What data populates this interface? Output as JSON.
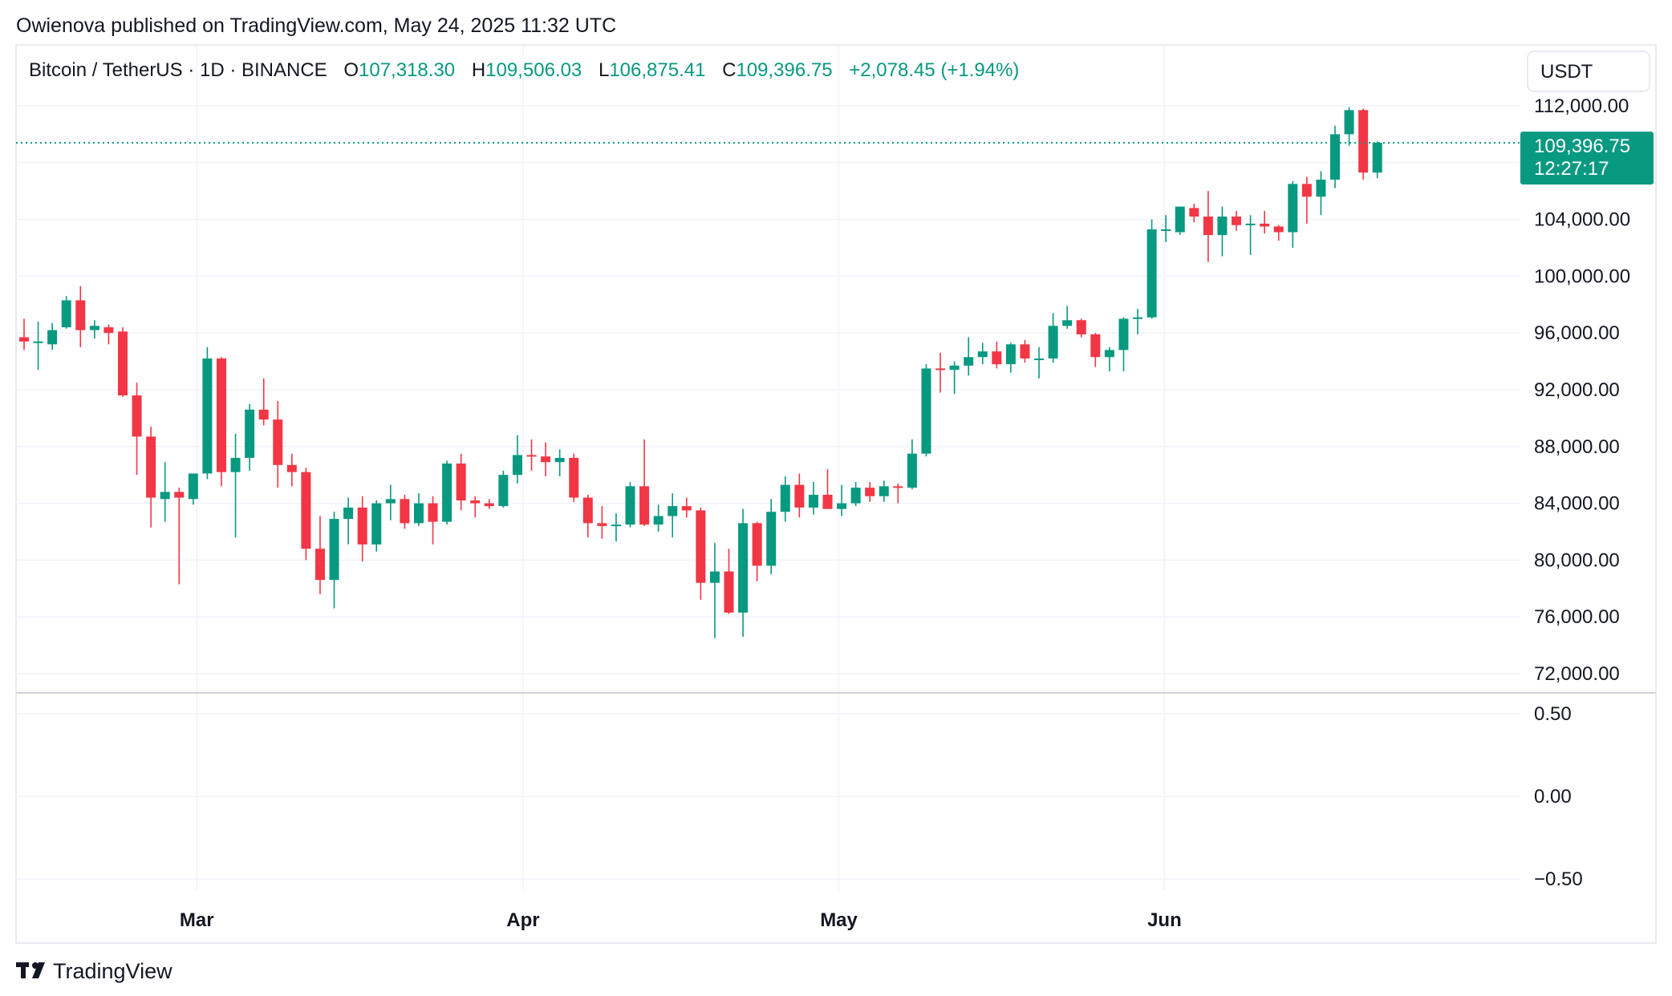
{
  "header": {
    "publisher_line": "Owienova published on TradingView.com, May 24, 2025 11:32 UTC"
  },
  "legend": {
    "symbol": "Bitcoin / TetherUS · 1D · BINANCE",
    "o_label": "O",
    "o_value": "107,318.30",
    "h_label": "H",
    "h_value": "109,506.03",
    "l_label": "L",
    "l_value": "106,875.41",
    "c_label": "C",
    "c_value": "109,396.75",
    "change": "+2,078.45 (+1.94%)"
  },
  "price_axis": {
    "currency": "USDT",
    "ticks": [
      "112,000.00",
      "104,000.00",
      "100,000.00",
      "96,000.00",
      "92,000.00",
      "88,000.00",
      "84,000.00",
      "80,000.00",
      "76,000.00",
      "72,000.00"
    ],
    "last_price_label": "109,396.75",
    "countdown_label": "12:27:17"
  },
  "indicator_axis": {
    "ticks": [
      "0.50",
      "0.00",
      "−0.50"
    ]
  },
  "time_axis": {
    "labels": [
      "Mar",
      "Apr",
      "May",
      "Jun"
    ]
  },
  "footer": {
    "brand": "TradingView"
  },
  "colors": {
    "up": "#089981",
    "down": "#f23645",
    "grid": "#f0f3fa",
    "text": "#131722"
  },
  "chart_data": {
    "type": "candlestick",
    "symbol": "BTCUSDT",
    "interval": "1D",
    "ylim": [
      71000,
      113500
    ],
    "indicator_ylim": [
      -0.6,
      0.6
    ],
    "grid": true,
    "last_price": 109396.75,
    "candles": [
      {
        "o": 95700,
        "h": 97000,
        "l": 94800,
        "c": 95400
      },
      {
        "o": 95400,
        "h": 96800,
        "l": 93400,
        "c": 95400
      },
      {
        "o": 95200,
        "h": 96700,
        "l": 94800,
        "c": 96200
      },
      {
        "o": 96400,
        "h": 98600,
        "l": 96300,
        "c": 98300
      },
      {
        "o": 98300,
        "h": 99300,
        "l": 95000,
        "c": 96200
      },
      {
        "o": 96200,
        "h": 96900,
        "l": 95600,
        "c": 96500
      },
      {
        "o": 96400,
        "h": 96600,
        "l": 95200,
        "c": 96000
      },
      {
        "o": 96100,
        "h": 96400,
        "l": 91500,
        "c": 91600
      },
      {
        "o": 91600,
        "h": 92500,
        "l": 86000,
        "c": 88700
      },
      {
        "o": 88700,
        "h": 89400,
        "l": 82300,
        "c": 84400
      },
      {
        "o": 84300,
        "h": 86900,
        "l": 82700,
        "c": 84800
      },
      {
        "o": 84800,
        "h": 85100,
        "l": 78300,
        "c": 84400
      },
      {
        "o": 84300,
        "h": 86000,
        "l": 83900,
        "c": 86100
      },
      {
        "o": 86100,
        "h": 95000,
        "l": 85700,
        "c": 94200
      },
      {
        "o": 94200,
        "h": 94300,
        "l": 85200,
        "c": 86200
      },
      {
        "o": 86200,
        "h": 88900,
        "l": 81600,
        "c": 87200
      },
      {
        "o": 87200,
        "h": 91000,
        "l": 86300,
        "c": 90600
      },
      {
        "o": 90600,
        "h": 92800,
        "l": 89500,
        "c": 89900
      },
      {
        "o": 89900,
        "h": 91200,
        "l": 85100,
        "c": 86700
      },
      {
        "o": 86700,
        "h": 87500,
        "l": 85200,
        "c": 86200
      },
      {
        "o": 86200,
        "h": 86500,
        "l": 80000,
        "c": 80800
      },
      {
        "o": 80800,
        "h": 83100,
        "l": 77600,
        "c": 78600
      },
      {
        "o": 78600,
        "h": 83400,
        "l": 76600,
        "c": 82900
      },
      {
        "o": 82900,
        "h": 84400,
        "l": 81100,
        "c": 83700
      },
      {
        "o": 83700,
        "h": 84500,
        "l": 79900,
        "c": 81100
      },
      {
        "o": 81100,
        "h": 84200,
        "l": 80600,
        "c": 84000
      },
      {
        "o": 84000,
        "h": 85300,
        "l": 82800,
        "c": 84300
      },
      {
        "o": 84300,
        "h": 84600,
        "l": 82200,
        "c": 82600
      },
      {
        "o": 82600,
        "h": 84700,
        "l": 82400,
        "c": 84000
      },
      {
        "o": 84000,
        "h": 84500,
        "l": 81100,
        "c": 82700
      },
      {
        "o": 82700,
        "h": 87000,
        "l": 82500,
        "c": 86800
      },
      {
        "o": 86800,
        "h": 87500,
        "l": 83500,
        "c": 84200
      },
      {
        "o": 84200,
        "h": 84500,
        "l": 83000,
        "c": 84000
      },
      {
        "o": 84000,
        "h": 84300,
        "l": 83600,
        "c": 83800
      },
      {
        "o": 83800,
        "h": 86300,
        "l": 83700,
        "c": 86000
      },
      {
        "o": 86000,
        "h": 88800,
        "l": 85400,
        "c": 87400
      },
      {
        "o": 87400,
        "h": 88500,
        "l": 86300,
        "c": 87300
      },
      {
        "o": 87300,
        "h": 88300,
        "l": 85900,
        "c": 86900
      },
      {
        "o": 86900,
        "h": 87800,
        "l": 85900,
        "c": 87200
      },
      {
        "o": 87200,
        "h": 87500,
        "l": 84100,
        "c": 84400
      },
      {
        "o": 84400,
        "h": 84600,
        "l": 81600,
        "c": 82600
      },
      {
        "o": 82600,
        "h": 83800,
        "l": 81500,
        "c": 82400
      },
      {
        "o": 82400,
        "h": 83300,
        "l": 81300,
        "c": 82500
      },
      {
        "o": 82500,
        "h": 85500,
        "l": 82300,
        "c": 85200
      },
      {
        "o": 85200,
        "h": 88500,
        "l": 82400,
        "c": 82500
      },
      {
        "o": 82500,
        "h": 83900,
        "l": 82000,
        "c": 83100
      },
      {
        "o": 83100,
        "h": 84700,
        "l": 81600,
        "c": 83800
      },
      {
        "o": 83800,
        "h": 84400,
        "l": 83000,
        "c": 83500
      },
      {
        "o": 83500,
        "h": 83700,
        "l": 77200,
        "c": 78400
      },
      {
        "o": 78400,
        "h": 81200,
        "l": 74500,
        "c": 79200
      },
      {
        "o": 79200,
        "h": 80800,
        "l": 76200,
        "c": 76300
      },
      {
        "o": 76300,
        "h": 83600,
        "l": 74600,
        "c": 82600
      },
      {
        "o": 82600,
        "h": 82700,
        "l": 78500,
        "c": 79600
      },
      {
        "o": 79600,
        "h": 84300,
        "l": 79000,
        "c": 83400
      },
      {
        "o": 83400,
        "h": 85900,
        "l": 82700,
        "c": 85300
      },
      {
        "o": 85300,
        "h": 86100,
        "l": 83000,
        "c": 83700
      },
      {
        "o": 83700,
        "h": 85500,
        "l": 83200,
        "c": 84600
      },
      {
        "o": 84600,
        "h": 86400,
        "l": 83600,
        "c": 83600
      },
      {
        "o": 83600,
        "h": 85300,
        "l": 83100,
        "c": 84000
      },
      {
        "o": 84000,
        "h": 85500,
        "l": 83800,
        "c": 85100
      },
      {
        "o": 85100,
        "h": 85500,
        "l": 84100,
        "c": 84500
      },
      {
        "o": 84500,
        "h": 85600,
        "l": 84100,
        "c": 85200
      },
      {
        "o": 85200,
        "h": 85400,
        "l": 84000,
        "c": 85100
      },
      {
        "o": 85100,
        "h": 88500,
        "l": 85000,
        "c": 87500
      },
      {
        "o": 87500,
        "h": 93800,
        "l": 87300,
        "c": 93500
      },
      {
        "o": 93500,
        "h": 94600,
        "l": 91800,
        "c": 93400
      },
      {
        "o": 93400,
        "h": 94000,
        "l": 91700,
        "c": 93700
      },
      {
        "o": 93700,
        "h": 95700,
        "l": 93000,
        "c": 94300
      },
      {
        "o": 94300,
        "h": 95300,
        "l": 93800,
        "c": 94700
      },
      {
        "o": 94700,
        "h": 95400,
        "l": 93500,
        "c": 93800
      },
      {
        "o": 93800,
        "h": 95300,
        "l": 93200,
        "c": 95200
      },
      {
        "o": 95200,
        "h": 95500,
        "l": 93900,
        "c": 94200
      },
      {
        "o": 94200,
        "h": 95000,
        "l": 92800,
        "c": 94200
      },
      {
        "o": 94200,
        "h": 97400,
        "l": 93900,
        "c": 96500
      },
      {
        "o": 96500,
        "h": 97900,
        "l": 96300,
        "c": 96900
      },
      {
        "o": 96900,
        "h": 97000,
        "l": 95700,
        "c": 95900
      },
      {
        "o": 95900,
        "h": 96000,
        "l": 93600,
        "c": 94300
      },
      {
        "o": 94300,
        "h": 95000,
        "l": 93300,
        "c": 94800
      },
      {
        "o": 94800,
        "h": 97100,
        "l": 93300,
        "c": 97000
      },
      {
        "o": 97000,
        "h": 97700,
        "l": 95900,
        "c": 97100
      },
      {
        "o": 97100,
        "h": 104000,
        "l": 97000,
        "c": 103300
      },
      {
        "o": 103300,
        "h": 104300,
        "l": 102400,
        "c": 103300
      },
      {
        "o": 103100,
        "h": 104900,
        "l": 102900,
        "c": 104900
      },
      {
        "o": 104800,
        "h": 105100,
        "l": 103800,
        "c": 104200
      },
      {
        "o": 104200,
        "h": 106000,
        "l": 101000,
        "c": 102900
      },
      {
        "o": 102900,
        "h": 104900,
        "l": 101400,
        "c": 104200
      },
      {
        "o": 104200,
        "h": 104600,
        "l": 103200,
        "c": 103600
      },
      {
        "o": 103600,
        "h": 104300,
        "l": 101500,
        "c": 103700
      },
      {
        "o": 103700,
        "h": 104600,
        "l": 103000,
        "c": 103500
      },
      {
        "o": 103500,
        "h": 103600,
        "l": 102500,
        "c": 103100
      },
      {
        "o": 103100,
        "h": 106700,
        "l": 102000,
        "c": 106500
      },
      {
        "o": 106500,
        "h": 107000,
        "l": 103700,
        "c": 105600
      },
      {
        "o": 105600,
        "h": 107400,
        "l": 104300,
        "c": 106800
      },
      {
        "o": 106800,
        "h": 110600,
        "l": 106200,
        "c": 110000
      },
      {
        "o": 110000,
        "h": 111900,
        "l": 109200,
        "c": 111700
      },
      {
        "o": 111700,
        "h": 111800,
        "l": 106800,
        "c": 107300
      },
      {
        "o": 107300,
        "h": 109500,
        "l": 106900,
        "c": 109400
      }
    ]
  }
}
